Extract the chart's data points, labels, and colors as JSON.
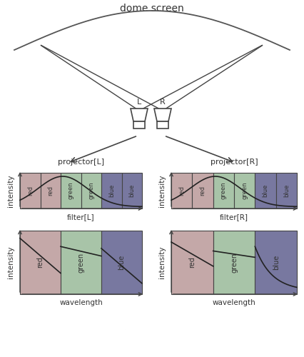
{
  "title": "dome screen",
  "color_red": "#c4a8a8",
  "color_green": "#a8c4a8",
  "color_blue": "#7878a0",
  "bg_color": "#ffffff",
  "text_color": "#333333",
  "projector_L_label": "projector[L]",
  "projector_R_label": "projector[R]",
  "filter_L_label": "filter[L]",
  "filter_R_label": "filter[R]",
  "wavelength_label": "wavelength",
  "intensity_label": "intensity"
}
